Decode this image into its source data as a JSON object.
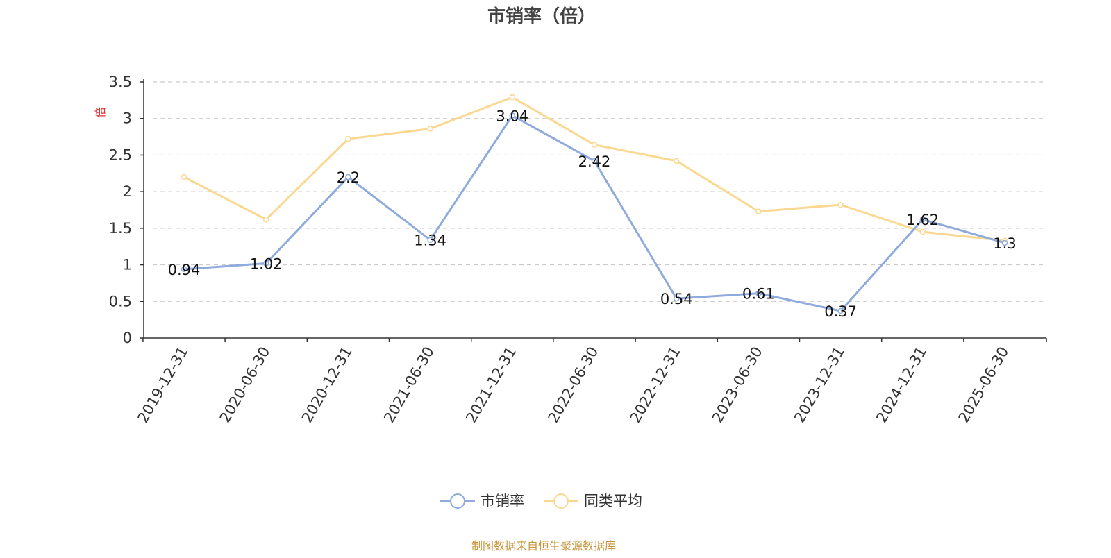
{
  "chart_data": {
    "type": "line",
    "title": "市销率（倍）",
    "ylabel": "倍",
    "xlabel": "",
    "ylim": [
      0,
      3.5
    ],
    "yticks": [
      "0",
      "0.5",
      "1",
      "1.5",
      "2",
      "2.5",
      "3",
      "3.5"
    ],
    "grid": true,
    "legend_position": "bottom-center",
    "categories": [
      "2019-12-31",
      "2020-06-30",
      "2020-12-31",
      "2021-06-30",
      "2021-12-31",
      "2022-06-30",
      "2022-12-31",
      "2023-06-30",
      "2023-12-31",
      "2024-12-31",
      "2025-06-30"
    ],
    "series": [
      {
        "name": "市销率",
        "color": "#8FAADC",
        "values": [
          0.94,
          1.02,
          2.2,
          1.34,
          3.04,
          2.42,
          0.54,
          0.61,
          0.37,
          1.62,
          1.3
        ],
        "data_labels": [
          "0.94",
          "1.02",
          "2.2",
          "1.34",
          "3.04",
          "2.42",
          "0.54",
          "0.61",
          "0.37",
          "1.62",
          "1.3"
        ]
      },
      {
        "name": "同类平均",
        "color": "#FAD88F",
        "values": [
          2.2,
          1.62,
          2.72,
          2.86,
          3.29,
          2.64,
          2.42,
          1.73,
          1.82,
          1.45,
          1.33
        ]
      }
    ]
  },
  "footer": {
    "source": "制图数据来自恒生聚源数据库",
    "source_color": "#C8963C"
  },
  "colors": {
    "axis": "#333333",
    "grid": "#CCCCCC",
    "ylabel": "#E03030",
    "title": "#444444"
  }
}
